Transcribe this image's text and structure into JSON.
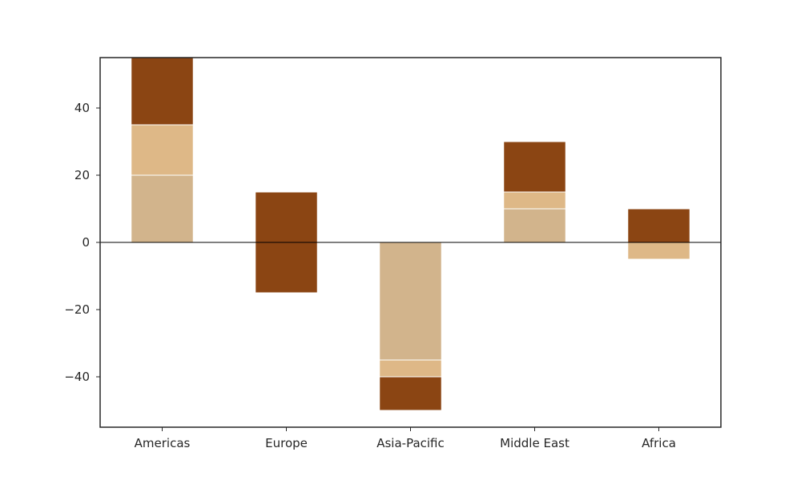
{
  "chart_data": {
    "type": "bar",
    "stacked": true,
    "title": "",
    "xlabel": "",
    "ylabel": "",
    "categories": [
      "Americas",
      "Europe",
      "Asia-Pacific",
      "Middle East",
      "Africa"
    ],
    "series": [
      {
        "color": "#d2b48c",
        "values": [
          20,
          0,
          -35,
          10,
          0
        ]
      },
      {
        "color": "#deb887",
        "values": [
          15,
          0,
          -5,
          5,
          -5
        ]
      },
      {
        "color": "#8b4513",
        "values": [
          20,
          15,
          -10,
          15,
          10
        ]
      }
    ],
    "extra_bars": [
      {
        "category": "Europe",
        "color": "#8b4513",
        "value": -15
      }
    ],
    "ylim": [
      -55,
      55
    ],
    "yticks": [
      -40,
      -20,
      0,
      20,
      40
    ],
    "ytick_labels": [
      "−40",
      "−20",
      "0",
      "20",
      "40"
    ],
    "zero_line": true,
    "grid": false,
    "legend": "none"
  }
}
